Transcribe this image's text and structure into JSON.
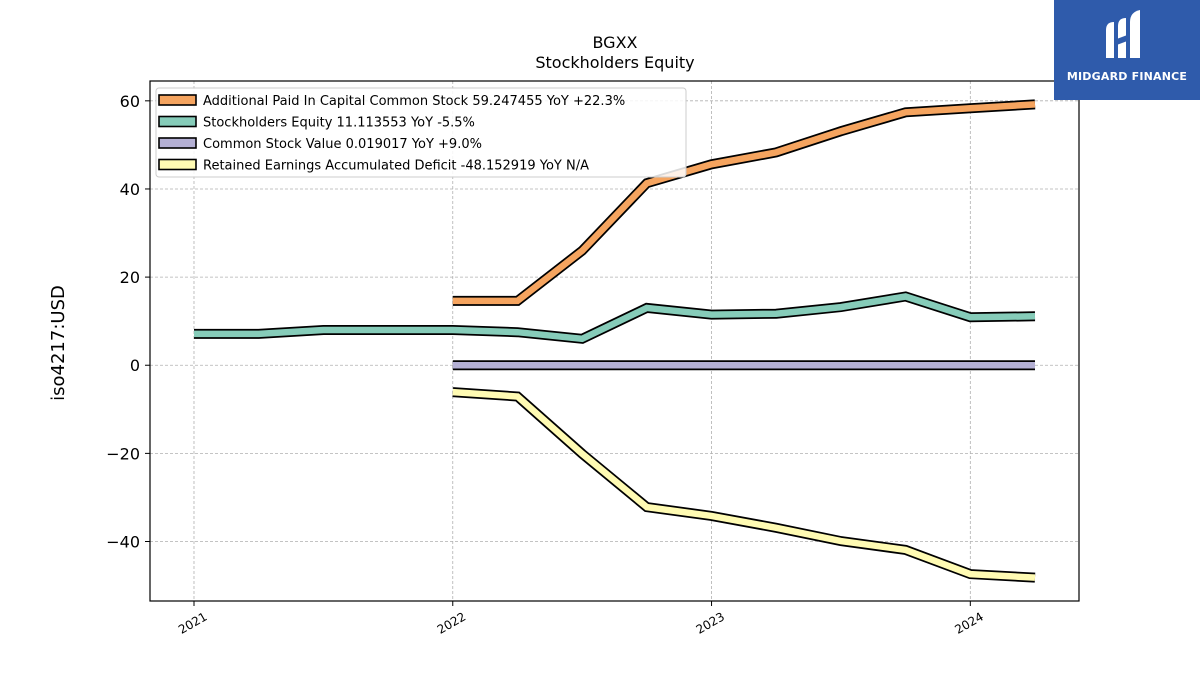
{
  "brand": {
    "name": "MIDGARD FINANCE",
    "bg_color": "#2f5bab"
  },
  "chart_data": {
    "type": "line",
    "title": "BGXX",
    "subtitle": "Stockholders  Equity",
    "ylabel": "iso4217:USD",
    "xlabel": "",
    "xlim": [
      2020.83,
      2024.42
    ],
    "ylim": [
      -53.5,
      64.5
    ],
    "x_ticks": [
      {
        "value": 2021.0,
        "label": "2021"
      },
      {
        "value": 2022.0,
        "label": "2022"
      },
      {
        "value": 2023.0,
        "label": "2023"
      },
      {
        "value": 2024.0,
        "label": "2024"
      }
    ],
    "y_ticks": [
      {
        "value": 60,
        "label": "60"
      },
      {
        "value": 40,
        "label": "40"
      },
      {
        "value": 20,
        "label": "20"
      },
      {
        "value": 0,
        "label": "0"
      },
      {
        "value": -20,
        "label": "−20"
      },
      {
        "value": -40,
        "label": "−40"
      }
    ],
    "grid": true,
    "legend_position": "top-left",
    "series": [
      {
        "name": "Additional Paid In Capital Common Stock  59.247455 YoY +22.3%",
        "color": "#f5a45f",
        "x": [
          2022.0,
          2022.25,
          2022.5,
          2022.75,
          2023.0,
          2023.25,
          2023.5,
          2023.75,
          2024.0,
          2024.25
        ],
        "y": [
          14.6,
          14.6,
          26.0,
          41.3,
          45.6,
          48.3,
          53.1,
          57.4,
          58.3,
          59.2
        ]
      },
      {
        "name": "Stockholders Equity  11.113553 YoY -5.5%",
        "color": "#86ccb9",
        "x": [
          2021.0,
          2021.25,
          2021.5,
          2021.75,
          2022.0,
          2022.25,
          2022.5,
          2022.75,
          2023.0,
          2023.25,
          2023.5,
          2023.75,
          2024.0,
          2024.25
        ],
        "y": [
          7.1,
          7.1,
          8.0,
          8.0,
          8.0,
          7.5,
          6.0,
          13.0,
          11.5,
          11.7,
          13.2,
          15.6,
          10.9,
          11.1
        ]
      },
      {
        "name": "Common Stock Value  0.019017 YoY +9.0%",
        "color": "#b4b0d4",
        "x": [
          2022.0,
          2022.25,
          2022.5,
          2022.75,
          2023.0,
          2023.25,
          2023.5,
          2023.75,
          2024.0,
          2024.25
        ],
        "y": [
          0.017,
          0.017,
          0.017,
          0.018,
          0.017,
          0.018,
          0.018,
          0.019,
          0.019,
          0.019
        ]
      },
      {
        "name": "Retained Earnings Accumulated Deficit  -48.152919 YoY N/A",
        "color": "#fffbb3",
        "x": [
          2022.0,
          2022.25,
          2022.5,
          2022.75,
          2023.0,
          2023.25,
          2023.5,
          2023.75,
          2024.0,
          2024.25
        ],
        "y": [
          -6.1,
          -7.1,
          -20.1,
          -32.2,
          -34.2,
          -36.9,
          -39.9,
          -41.9,
          -47.4,
          -48.2
        ]
      }
    ]
  }
}
